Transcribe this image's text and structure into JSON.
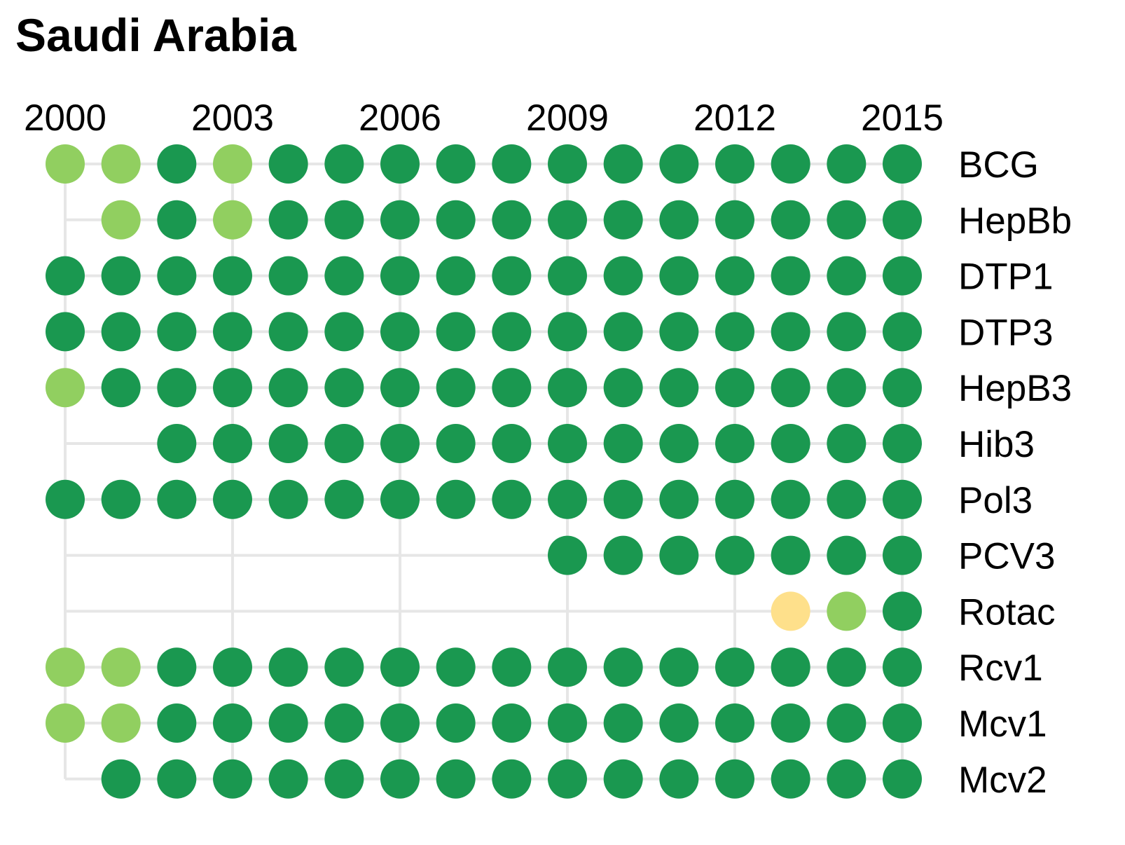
{
  "chart_data": {
    "type": "scatter",
    "title": "Saudi Arabia",
    "x_ticks": [
      "2000",
      "2003",
      "2006",
      "2009",
      "2012",
      "2015"
    ],
    "years": [
      2000,
      2001,
      2002,
      2003,
      2004,
      2005,
      2006,
      2007,
      2008,
      2009,
      2010,
      2011,
      2012,
      2013,
      2014,
      2015
    ],
    "xlim": [
      2000,
      2015
    ],
    "legend": "none",
    "colors": {
      "H": "#1a9850",
      "M": "#91cf60",
      "L": "#fee08b",
      "grid": "#e6e6e6"
    },
    "rows": [
      {
        "label": "BCG",
        "levels": [
          "M",
          "M",
          "H",
          "M",
          "H",
          "H",
          "H",
          "H",
          "H",
          "H",
          "H",
          "H",
          "H",
          "H",
          "H",
          "H"
        ]
      },
      {
        "label": "HepBb",
        "levels": [
          null,
          "M",
          "H",
          "M",
          "H",
          "H",
          "H",
          "H",
          "H",
          "H",
          "H",
          "H",
          "H",
          "H",
          "H",
          "H"
        ]
      },
      {
        "label": "DTP1",
        "levels": [
          "H",
          "H",
          "H",
          "H",
          "H",
          "H",
          "H",
          "H",
          "H",
          "H",
          "H",
          "H",
          "H",
          "H",
          "H",
          "H"
        ]
      },
      {
        "label": "DTP3",
        "levels": [
          "H",
          "H",
          "H",
          "H",
          "H",
          "H",
          "H",
          "H",
          "H",
          "H",
          "H",
          "H",
          "H",
          "H",
          "H",
          "H"
        ]
      },
      {
        "label": "HepB3",
        "levels": [
          "M",
          "H",
          "H",
          "H",
          "H",
          "H",
          "H",
          "H",
          "H",
          "H",
          "H",
          "H",
          "H",
          "H",
          "H",
          "H"
        ]
      },
      {
        "label": "Hib3",
        "levels": [
          null,
          null,
          "H",
          "H",
          "H",
          "H",
          "H",
          "H",
          "H",
          "H",
          "H",
          "H",
          "H",
          "H",
          "H",
          "H"
        ]
      },
      {
        "label": "Pol3",
        "levels": [
          "H",
          "H",
          "H",
          "H",
          "H",
          "H",
          "H",
          "H",
          "H",
          "H",
          "H",
          "H",
          "H",
          "H",
          "H",
          "H"
        ]
      },
      {
        "label": "PCV3",
        "levels": [
          null,
          null,
          null,
          null,
          null,
          null,
          null,
          null,
          null,
          "H",
          "H",
          "H",
          "H",
          "H",
          "H",
          "H"
        ]
      },
      {
        "label": "Rotac",
        "levels": [
          null,
          null,
          null,
          null,
          null,
          null,
          null,
          null,
          null,
          null,
          null,
          null,
          null,
          "L",
          "M",
          "H"
        ]
      },
      {
        "label": "Rcv1",
        "levels": [
          "M",
          "M",
          "H",
          "H",
          "H",
          "H",
          "H",
          "H",
          "H",
          "H",
          "H",
          "H",
          "H",
          "H",
          "H",
          "H"
        ]
      },
      {
        "label": "Mcv1",
        "levels": [
          "M",
          "M",
          "H",
          "H",
          "H",
          "H",
          "H",
          "H",
          "H",
          "H",
          "H",
          "H",
          "H",
          "H",
          "H",
          "H"
        ]
      },
      {
        "label": "Mcv2",
        "levels": [
          null,
          "H",
          "H",
          "H",
          "H",
          "H",
          "H",
          "H",
          "H",
          "H",
          "H",
          "H",
          "H",
          "H",
          "H",
          "H"
        ]
      }
    ]
  }
}
